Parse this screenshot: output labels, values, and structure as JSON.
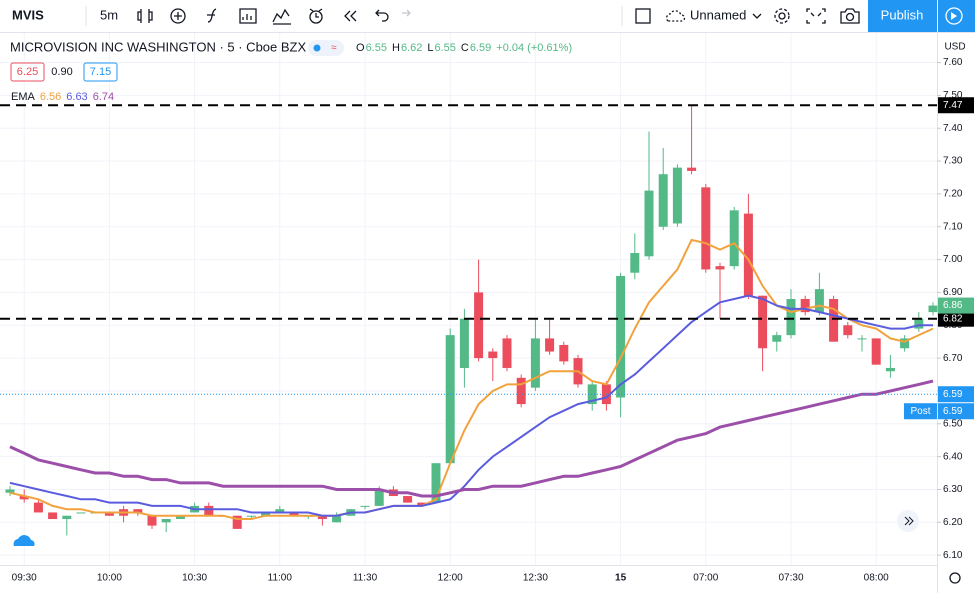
{
  "toolbar": {
    "symbol": "MVIS",
    "interval": "5m",
    "layout": "Unnamed",
    "publish": "Publish"
  },
  "header": {
    "name": "MICROVISION INC WASHINGTON · 5 · Cboe BZX",
    "ohlc": [
      {
        "label": "O",
        "value": "6.55"
      },
      {
        "label": "H",
        "value": "6.62"
      },
      {
        "label": "L",
        "value": "6.55"
      },
      {
        "label": "C",
        "value": "6.59"
      }
    ],
    "change": "+0.04 (+0.61%)",
    "quote": {
      "bid": "6.25",
      "spread": "0.90",
      "ask": "7.15"
    },
    "ema_label": "EMA",
    "ema_values": [
      "6.56",
      "6.63",
      "6.74"
    ]
  },
  "chart_data": {
    "type": "candlestick",
    "currency": "USD",
    "categories": [
      null,
      "09:30",
      null,
      null,
      null,
      null,
      null,
      "10:00",
      null,
      null,
      null,
      null,
      null,
      "10:30",
      null,
      null,
      null,
      null,
      null,
      "11:00",
      null,
      null,
      null,
      null,
      null,
      "11:30",
      null,
      null,
      null,
      null,
      null,
      "12:00",
      null,
      null,
      null,
      null,
      null,
      "12:30",
      null,
      null,
      null,
      null,
      null,
      "15",
      null,
      null,
      null,
      null,
      null,
      "07:00",
      null,
      null,
      null,
      null,
      null,
      "07:30",
      null,
      null,
      null,
      null,
      null,
      "08:00",
      null,
      null,
      null,
      null
    ],
    "open": [
      6.29,
      6.28,
      6.26,
      6.23,
      6.21,
      6.23,
      6.23,
      6.23,
      6.24,
      6.24,
      6.22,
      6.2,
      6.21,
      6.23,
      6.25,
      6.22,
      6.22,
      6.22,
      6.22,
      6.23,
      6.23,
      6.22,
      6.22,
      6.2,
      6.22,
      6.25,
      6.25,
      6.3,
      6.28,
      6.26,
      6.26,
      6.38,
      6.67,
      6.9,
      6.72,
      6.76,
      6.64,
      6.61,
      6.76,
      6.74,
      6.7,
      6.56,
      6.62,
      6.58,
      6.96,
      7.01,
      7.1,
      7.11,
      7.28,
      7.22,
      6.98,
      6.98,
      7.14,
      6.89,
      6.75,
      6.77,
      6.88,
      6.84,
      6.88,
      6.8,
      6.76,
      6.76,
      6.66,
      6.73,
      6.79,
      6.84
    ],
    "high": [
      6.31,
      6.3,
      6.27,
      6.23,
      6.22,
      6.23,
      6.23,
      6.23,
      6.25,
      6.24,
      6.22,
      6.21,
      6.22,
      6.26,
      6.26,
      6.22,
      6.22,
      6.22,
      6.23,
      6.25,
      6.23,
      6.22,
      6.22,
      6.23,
      6.24,
      6.25,
      6.31,
      6.31,
      6.28,
      6.26,
      6.38,
      6.79,
      6.85,
      7.0,
      6.73,
      6.77,
      6.65,
      6.82,
      6.82,
      6.75,
      6.71,
      6.63,
      6.63,
      6.96,
      7.08,
      7.39,
      7.34,
      7.29,
      7.47,
      7.23,
      6.99,
      7.16,
      7.2,
      6.89,
      6.78,
      6.91,
      6.89,
      6.96,
      6.89,
      6.81,
      6.77,
      6.76,
      6.71,
      6.77,
      6.84,
      6.87
    ],
    "low": [
      6.28,
      6.26,
      6.23,
      6.21,
      6.16,
      6.23,
      6.23,
      6.22,
      6.2,
      6.22,
      6.18,
      6.17,
      6.21,
      6.23,
      6.22,
      6.22,
      6.18,
      6.21,
      6.22,
      6.23,
      6.22,
      6.21,
      6.19,
      6.2,
      6.22,
      6.24,
      6.25,
      6.28,
      6.26,
      6.25,
      6.26,
      6.38,
      6.61,
      6.69,
      6.63,
      6.66,
      6.55,
      6.6,
      6.71,
      6.68,
      6.61,
      6.54,
      6.54,
      6.52,
      6.94,
      7.0,
      7.09,
      7.1,
      7.26,
      6.96,
      6.82,
      6.97,
      6.88,
      6.66,
      6.72,
      6.76,
      6.83,
      6.83,
      6.75,
      6.76,
      6.72,
      6.68,
      6.64,
      6.72,
      6.78,
      6.83
    ],
    "close": [
      6.3,
      6.27,
      6.23,
      6.21,
      6.22,
      6.23,
      6.23,
      6.22,
      6.22,
      6.23,
      6.19,
      6.21,
      6.22,
      6.25,
      6.22,
      6.22,
      6.18,
      6.22,
      6.23,
      6.24,
      6.22,
      6.22,
      6.21,
      6.22,
      6.24,
      6.25,
      6.3,
      6.28,
      6.26,
      6.25,
      6.38,
      6.77,
      6.82,
      6.7,
      6.7,
      6.67,
      6.56,
      6.76,
      6.72,
      6.69,
      6.62,
      6.62,
      6.56,
      6.95,
      7.02,
      7.21,
      7.26,
      7.28,
      7.27,
      6.97,
      6.97,
      7.15,
      6.89,
      6.73,
      6.77,
      6.88,
      6.84,
      6.91,
      6.75,
      6.77,
      6.76,
      6.68,
      6.67,
      6.76,
      6.82,
      6.86
    ],
    "up_color": "#53b987",
    "down_color": "#eb4d5c",
    "lines": [
      {
        "color": "#f2a23c",
        "values": [
          6.29,
          6.28,
          6.27,
          6.25,
          6.24,
          6.24,
          6.23,
          6.23,
          6.23,
          6.23,
          6.22,
          6.22,
          6.22,
          6.22,
          6.22,
          6.22,
          6.21,
          6.21,
          6.22,
          6.22,
          6.22,
          6.22,
          6.22,
          6.22,
          6.23,
          6.23,
          6.24,
          6.25,
          6.25,
          6.25,
          6.27,
          6.38,
          6.48,
          6.56,
          6.6,
          6.62,
          6.62,
          6.64,
          6.66,
          6.66,
          6.66,
          6.63,
          6.62,
          6.7,
          6.79,
          6.87,
          6.92,
          6.97,
          7.06,
          7.05,
          7.03,
          7.05,
          7.0,
          6.92,
          6.86,
          6.84,
          6.85,
          6.86,
          6.85,
          6.82,
          6.8,
          6.79,
          6.76,
          6.75,
          6.77,
          6.79
        ]
      },
      {
        "color": "#5a5ce0",
        "values": [
          6.32,
          6.31,
          6.3,
          6.29,
          6.28,
          6.27,
          6.27,
          6.26,
          6.26,
          6.26,
          6.25,
          6.25,
          6.25,
          6.24,
          6.24,
          6.24,
          6.24,
          6.23,
          6.23,
          6.23,
          6.23,
          6.23,
          6.22,
          6.22,
          6.23,
          6.23,
          6.24,
          6.25,
          6.25,
          6.25,
          6.26,
          6.27,
          6.31,
          6.36,
          6.4,
          6.43,
          6.46,
          6.49,
          6.52,
          6.54,
          6.56,
          6.57,
          6.58,
          6.62,
          6.65,
          6.69,
          6.73,
          6.77,
          6.81,
          6.84,
          6.87,
          6.88,
          6.89,
          6.88,
          6.86,
          6.85,
          6.85,
          6.84,
          6.83,
          6.82,
          6.81,
          6.8,
          6.79,
          6.79,
          6.8,
          6.8
        ]
      },
      {
        "color": "#9c4fa8",
        "values": [
          6.43,
          6.41,
          6.39,
          6.38,
          6.37,
          6.36,
          6.35,
          6.35,
          6.34,
          6.34,
          6.33,
          6.33,
          6.32,
          6.32,
          6.32,
          6.31,
          6.31,
          6.31,
          6.31,
          6.31,
          6.31,
          6.31,
          6.31,
          6.3,
          6.3,
          6.3,
          6.3,
          6.29,
          6.29,
          6.28,
          6.28,
          6.29,
          6.3,
          6.3,
          6.31,
          6.31,
          6.31,
          6.32,
          6.33,
          6.34,
          6.34,
          6.35,
          6.36,
          6.37,
          6.39,
          6.41,
          6.43,
          6.45,
          6.46,
          6.47,
          6.49,
          6.5,
          6.51,
          6.52,
          6.53,
          6.54,
          6.55,
          6.56,
          6.57,
          6.58,
          6.59,
          6.59,
          6.6,
          6.61,
          6.62,
          6.63
        ]
      }
    ],
    "ylim": [
      6.07,
      7.69
    ],
    "yticks": [
      {
        "value": 6.1,
        "label": "6.10"
      },
      {
        "value": 6.2,
        "label": "6.20"
      },
      {
        "value": 6.3,
        "label": "6.30"
      },
      {
        "value": 6.4,
        "label": "6.40"
      },
      {
        "value": 6.5,
        "label": "6.50"
      },
      {
        "value": 6.6,
        "label": "6.60"
      },
      {
        "value": 6.7,
        "label": "6.70"
      },
      {
        "value": 6.8,
        "label": "6.80"
      },
      {
        "value": 6.9,
        "label": "6.90"
      },
      {
        "value": 7.0,
        "label": "7.00"
      },
      {
        "value": 7.1,
        "label": "7.10"
      },
      {
        "value": 7.2,
        "label": "7.20"
      },
      {
        "value": 7.3,
        "label": "7.30"
      },
      {
        "value": 7.4,
        "label": "7.40"
      },
      {
        "value": 7.5,
        "label": "7.50"
      },
      {
        "value": 7.6,
        "label": "7.60"
      }
    ],
    "grid": true,
    "hlines": [
      7.47,
      6.82
    ],
    "price_tags": [
      {
        "value": 6.86,
        "color": "#53b987"
      },
      {
        "value": 6.59,
        "color": "#2196f3",
        "label": "Post"
      }
    ]
  }
}
